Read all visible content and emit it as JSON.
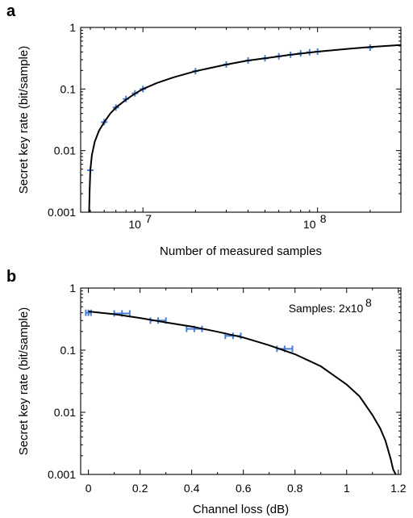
{
  "chart_data": [
    {
      "panel": "a",
      "type": "scatter",
      "title": "",
      "xlabel": "Number of measured samples",
      "ylabel": "Secret key rate (bit/sample)",
      "xscale": "log",
      "yscale": "log",
      "xlim": [
        4400000,
        300000000
      ],
      "ylim": [
        0.001,
        1
      ],
      "xticks": [
        {
          "value": 10000000,
          "base": "10",
          "exp": "7"
        },
        {
          "value": 100000000,
          "base": "10",
          "exp": "8"
        }
      ],
      "yticks": [
        {
          "value": 1,
          "label": "1"
        },
        {
          "value": 0.1,
          "label": "0.1"
        },
        {
          "value": 0.01,
          "label": "0.01"
        },
        {
          "value": 0.001,
          "label": "0.001"
        }
      ],
      "grid": false,
      "series": [
        {
          "kind": "markers",
          "x": [
            5000000,
            6000000,
            7000000,
            8000000,
            9000000,
            10000000,
            20000000,
            30000000,
            40000000,
            50000000,
            60000000,
            70000000,
            80000000,
            90000000,
            100000000,
            200000000
          ],
          "y": [
            0.0048,
            0.029,
            0.05,
            0.069,
            0.085,
            0.1,
            0.195,
            0.25,
            0.29,
            0.315,
            0.34,
            0.36,
            0.38,
            0.395,
            0.405,
            0.47
          ]
        },
        {
          "kind": "line",
          "x": [
            4920000,
            4950000,
            5000000,
            5100000,
            5300000,
            5600000,
            6000000,
            6500000,
            7000000,
            8000000,
            9000000,
            10000000,
            12000000,
            15000000,
            20000000,
            30000000,
            40000000,
            50000000,
            70000000,
            100000000,
            150000000,
            200000000,
            300000000
          ],
          "y": [
            0.001,
            0.0022,
            0.0048,
            0.0085,
            0.014,
            0.021,
            0.029,
            0.04,
            0.05,
            0.067,
            0.084,
            0.1,
            0.125,
            0.155,
            0.195,
            0.25,
            0.29,
            0.315,
            0.36,
            0.405,
            0.45,
            0.48,
            0.52
          ]
        }
      ]
    },
    {
      "panel": "b",
      "type": "scatter",
      "title": "",
      "xlabel": "Channel loss (dB)",
      "ylabel": "Secret key rate (bit/sample)",
      "xscale": "linear",
      "yscale": "log",
      "xlim": [
        -0.03,
        1.21
      ],
      "ylim": [
        0.001,
        1
      ],
      "xticks": [
        {
          "value": 0,
          "label": "0"
        },
        {
          "value": 0.2,
          "label": "0.2"
        },
        {
          "value": 0.4,
          "label": "0.4"
        },
        {
          "value": 0.6,
          "label": "0.6"
        },
        {
          "value": 0.8,
          "label": "0.8"
        },
        {
          "value": 1,
          "label": "1"
        },
        {
          "value": 1.2,
          "label": "1.2"
        }
      ],
      "yticks": [
        {
          "value": 1,
          "label": "1"
        },
        {
          "value": 0.1,
          "label": "0.1"
        },
        {
          "value": 0.01,
          "label": "0.01"
        },
        {
          "value": 0.001,
          "label": "0.001"
        }
      ],
      "grid": false,
      "annotation": {
        "text": "Samples: 2x10",
        "sup": "8"
      },
      "series": [
        {
          "kind": "markers_xerr",
          "points": [
            {
              "x": 0.0,
              "y": 0.4,
              "xerr": 0.01
            },
            {
              "x": 0.13,
              "y": 0.39,
              "xerr": 0.03
            },
            {
              "x": 0.27,
              "y": 0.3,
              "xerr": 0.03
            },
            {
              "x": 0.41,
              "y": 0.22,
              "xerr": 0.03
            },
            {
              "x": 0.56,
              "y": 0.17,
              "xerr": 0.03
            },
            {
              "x": 0.76,
              "y": 0.105,
              "xerr": 0.03
            }
          ]
        },
        {
          "kind": "line",
          "x": [
            0,
            0.1,
            0.2,
            0.3,
            0.4,
            0.5,
            0.6,
            0.7,
            0.8,
            0.9,
            1.0,
            1.05,
            1.1,
            1.13,
            1.15,
            1.17,
            1.18,
            1.19
          ],
          "y": [
            0.42,
            0.38,
            0.33,
            0.28,
            0.24,
            0.198,
            0.16,
            0.12,
            0.086,
            0.055,
            0.028,
            0.018,
            0.009,
            0.0055,
            0.0035,
            0.0018,
            0.0012,
            0.001
          ]
        }
      ]
    }
  ]
}
